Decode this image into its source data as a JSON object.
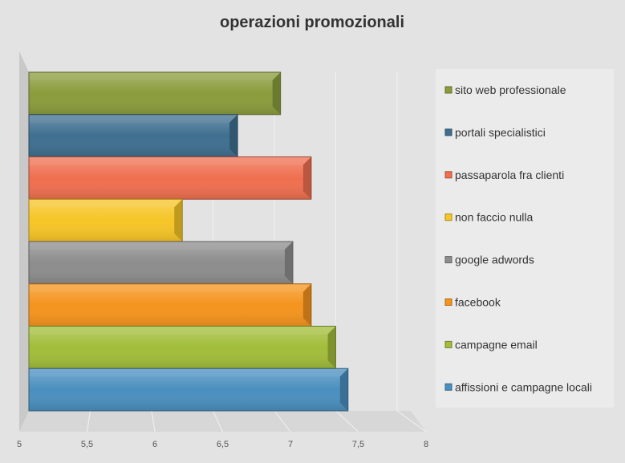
{
  "chart_data": {
    "type": "bar",
    "orientation": "horizontal",
    "three_d": true,
    "title": "operazioni promozionali",
    "xlim": [
      5,
      8
    ],
    "x_ticks": [
      "5",
      "5,5",
      "6",
      "6,5",
      "7",
      "7,5",
      "8"
    ],
    "grid": true,
    "legend_position": "right",
    "categories": [
      "affissioni e campagne locali",
      "campagne email",
      "facebook",
      "google adwords",
      "non faccio nulla",
      "passaparola fra clienti",
      "portali specialistici",
      "sito web professionale"
    ],
    "values": [
      7.6,
      7.5,
      7.3,
      7.15,
      6.25,
      7.3,
      6.7,
      7.05
    ],
    "colors": [
      "#4a8fbf",
      "#a2bd3a",
      "#f5941d",
      "#8d8d8d",
      "#f6c526",
      "#ef6f4f",
      "#3f6f90",
      "#8a9c3c"
    ],
    "legend": [
      "sito web professionale",
      "portali specialistici",
      "passaparola fra clienti",
      "non faccio nulla",
      "google adwords",
      "facebook",
      "campagne email",
      "affissioni e campagne locali"
    ],
    "legend_colors": [
      "#8a9c3c",
      "#3f6f90",
      "#ef6f4f",
      "#f6c526",
      "#8d8d8d",
      "#f5941d",
      "#a2bd3a",
      "#4a8fbf"
    ]
  }
}
